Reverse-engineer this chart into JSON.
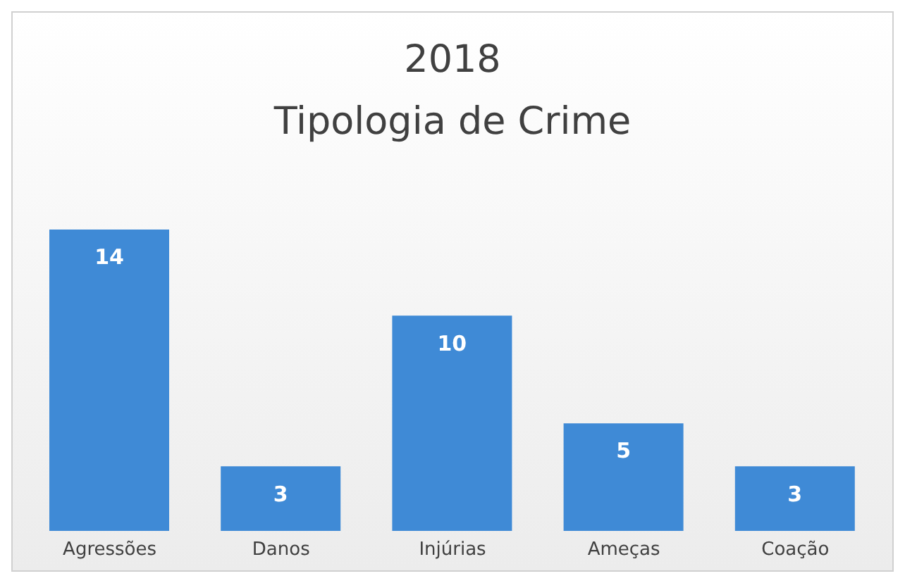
{
  "chart_data": {
    "type": "bar",
    "title": "2018",
    "subtitle": "Tipologia de Crime",
    "categories": [
      "Agressões",
      "Danos",
      "Injúrias",
      "Ameças",
      "Coação"
    ],
    "values": [
      14,
      3,
      10,
      5,
      3
    ],
    "color": "#3f8ad6",
    "data_labels": true,
    "grid": false,
    "legend": false
  }
}
